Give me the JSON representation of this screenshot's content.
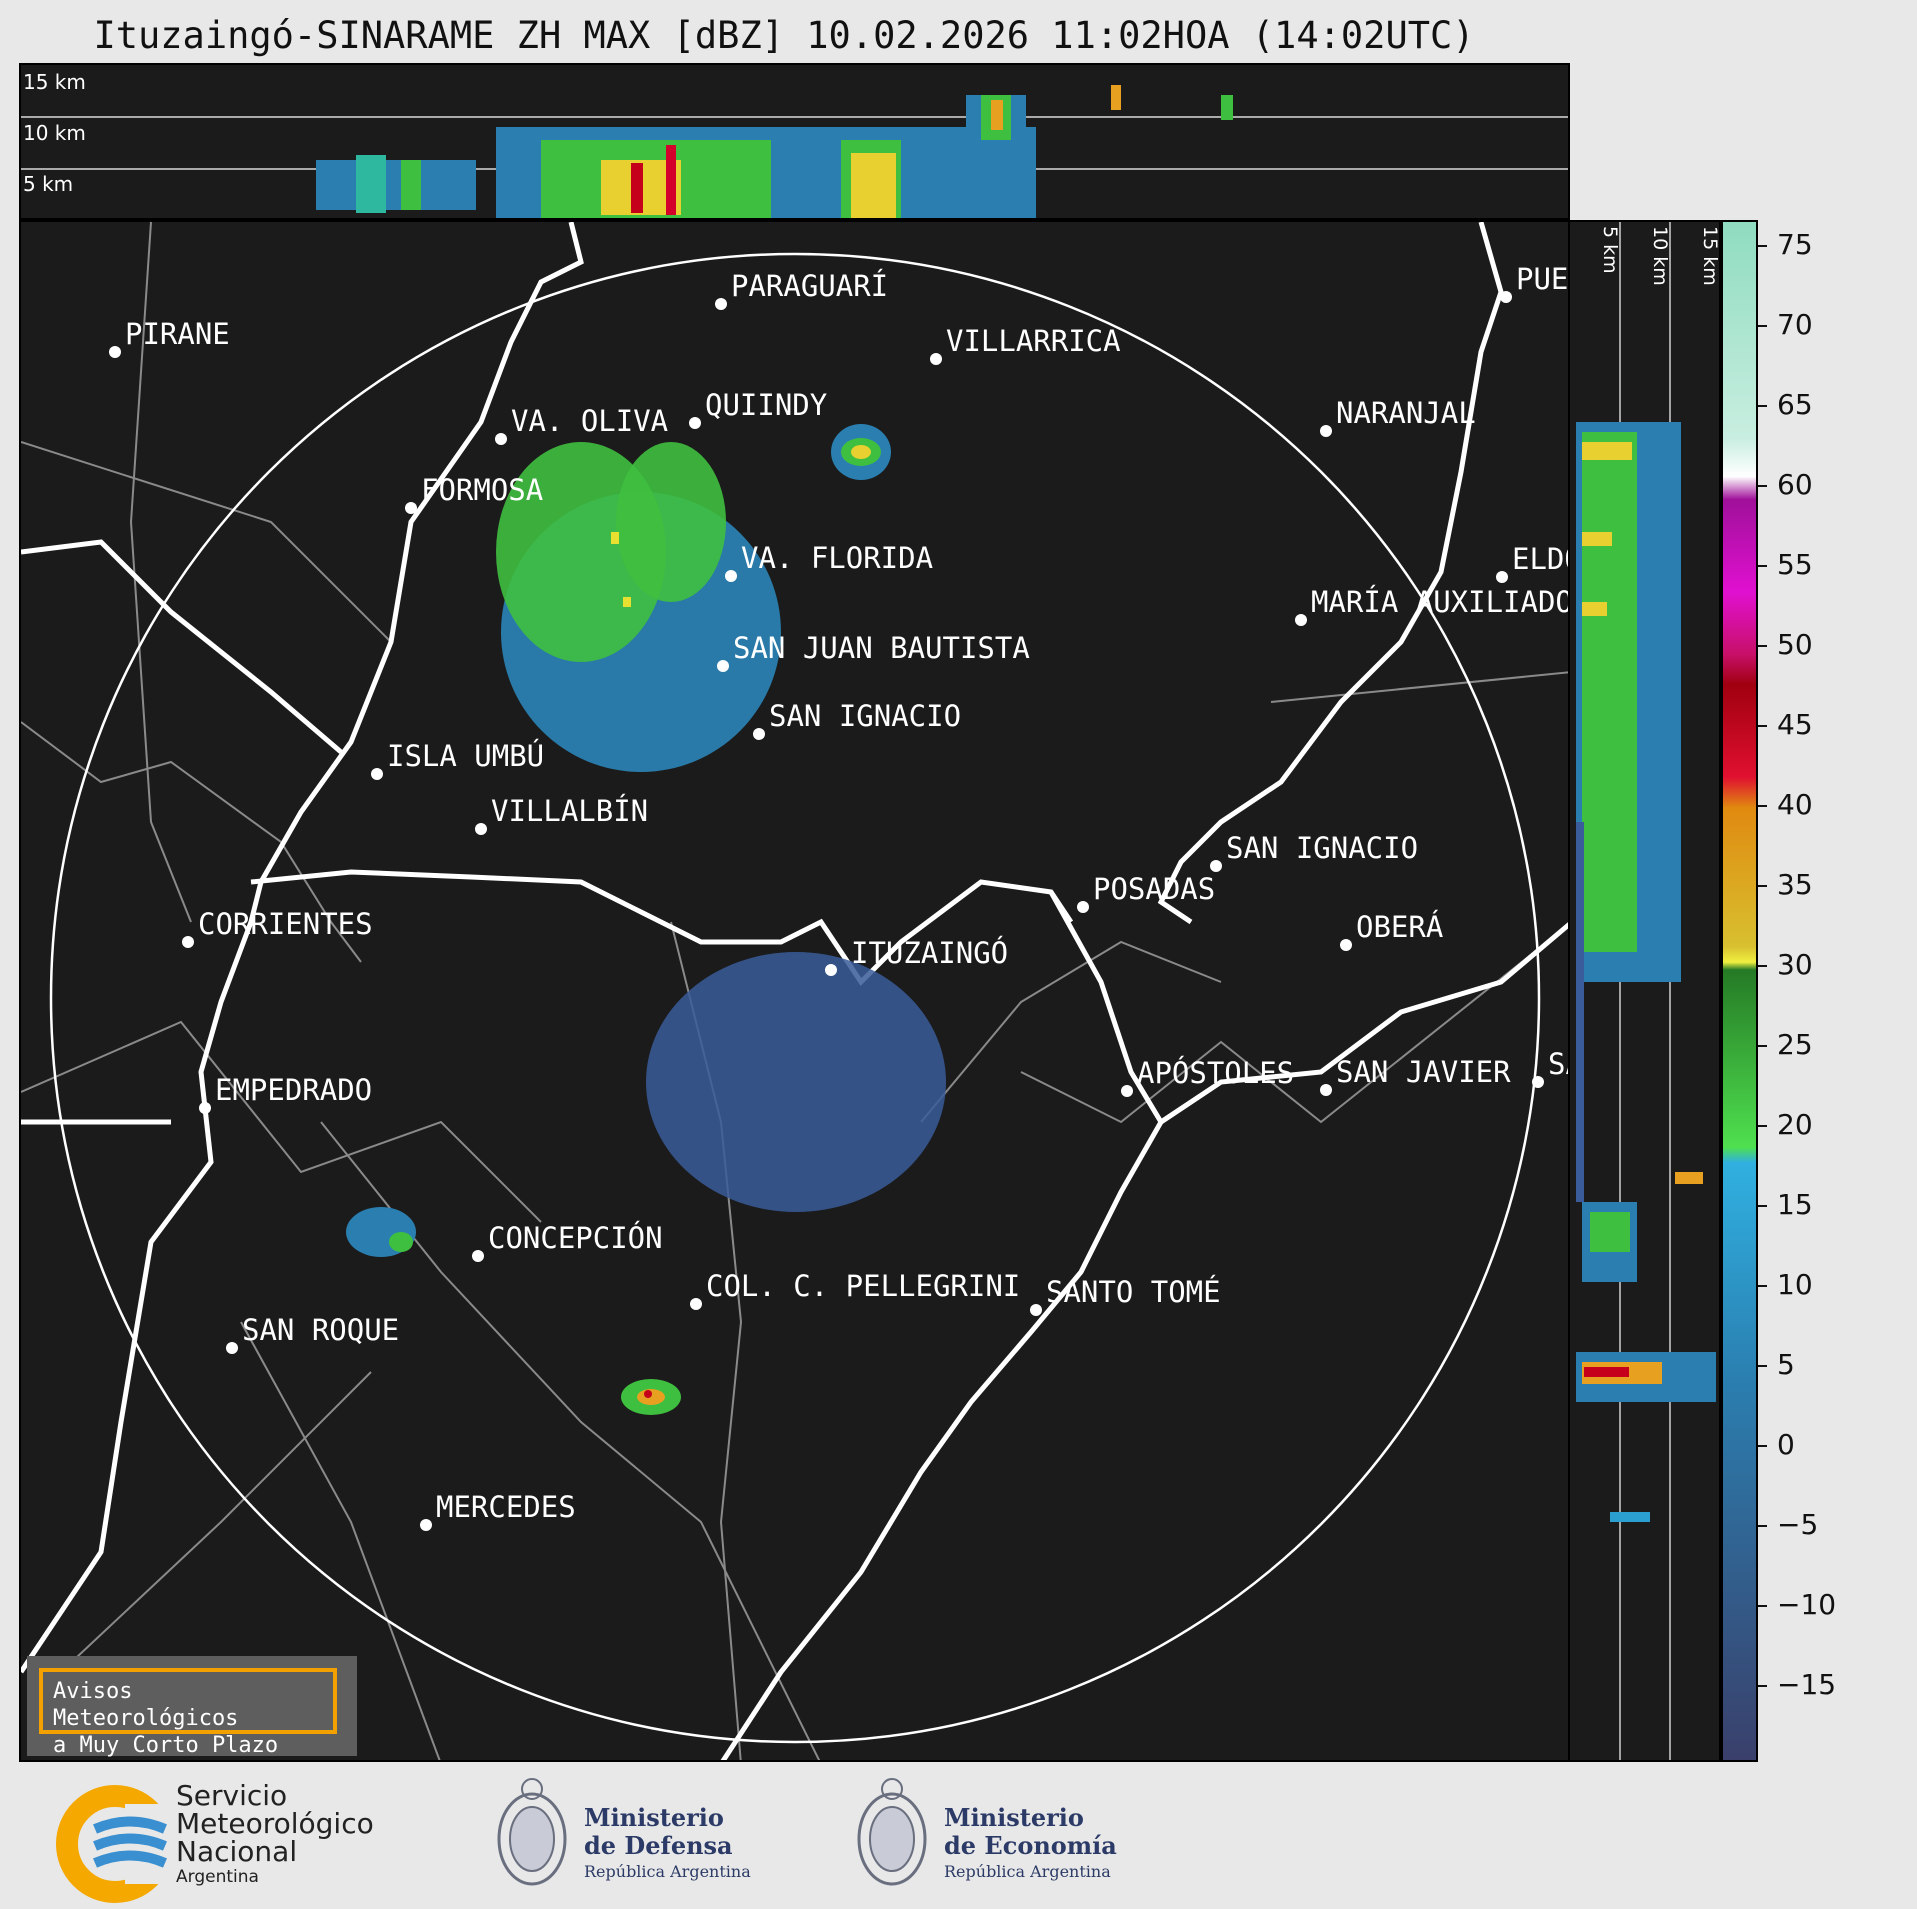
{
  "title": "Ituzaingó-SINARAME ZH MAX [dBZ] 10.02.2026 11:02HOA (14:02UTC)",
  "top_panel": {
    "height_labels": [
      "15 km",
      "10 km",
      "5 km"
    ]
  },
  "side_panel": {
    "height_labels": [
      "5 km",
      "10 km",
      "15 km"
    ]
  },
  "map": {
    "radar_site": "ITUZAINGÓ",
    "places": [
      {
        "name": "PARAGUARÍ"
      },
      {
        "name": "PIRANE"
      },
      {
        "name": "VILLARRICA"
      },
      {
        "name": "PUE"
      },
      {
        "name": "VA. OLIVA"
      },
      {
        "name": "QUIINDY"
      },
      {
        "name": "NARANJAL"
      },
      {
        "name": "FORMOSA"
      },
      {
        "name": "VA. FLORIDA"
      },
      {
        "name": "ELDO"
      },
      {
        "name": "MARÍA AUXILIADOR"
      },
      {
        "name": "SAN JUAN BAUTISTA"
      },
      {
        "name": "SAN IGNACIO"
      },
      {
        "name": "ISLA UMBÚ"
      },
      {
        "name": "VILLALBÍN"
      },
      {
        "name": "SAN IGNACIO"
      },
      {
        "name": "POSADAS"
      },
      {
        "name": "CORRIENTES"
      },
      {
        "name": "ITUZAINGÓ"
      },
      {
        "name": "OBERÁ"
      },
      {
        "name": "EMPEDRADO"
      },
      {
        "name": "APÓSTOLES"
      },
      {
        "name": "SAN JAVIER"
      },
      {
        "name": "SA"
      },
      {
        "name": "CONCEPCIÓN"
      },
      {
        "name": "COL. C. PELLEGRINI"
      },
      {
        "name": "SAN ROQUE"
      },
      {
        "name": "SANTO TOMÉ"
      },
      {
        "name": "MERCEDES"
      }
    ]
  },
  "colorbar": {
    "unit": "dBZ",
    "ticks": [
      "75",
      "70",
      "65",
      "60",
      "55",
      "50",
      "45",
      "40",
      "35",
      "30",
      "25",
      "20",
      "15",
      "10",
      "5",
      "0",
      "−5",
      "−10",
      "−15"
    ],
    "colors": {
      "high": "#8fdcc0",
      "white": "#ffffff",
      "magenta": "#c8109a",
      "red": "#c4001a",
      "orange": "#e08a10",
      "yellow": "#e8e030",
      "green": "#3fbf3f",
      "blue": "#2a9fd0",
      "dark_blue": "#3a3f6a"
    }
  },
  "warning_box": {
    "line1": "Avisos Meteorológicos",
    "line2": "a Muy Corto Plazo"
  },
  "footer": {
    "smn": {
      "line1": "Servicio",
      "line2": "Meteorológico",
      "line3": "Nacional",
      "line4": "Argentina"
    },
    "defensa": {
      "line1": "Ministerio",
      "line2": "de Defensa",
      "line3": "República Argentina"
    },
    "economia": {
      "line1": "Ministerio",
      "line2": "de Economía",
      "line3": "República Argentina"
    }
  }
}
